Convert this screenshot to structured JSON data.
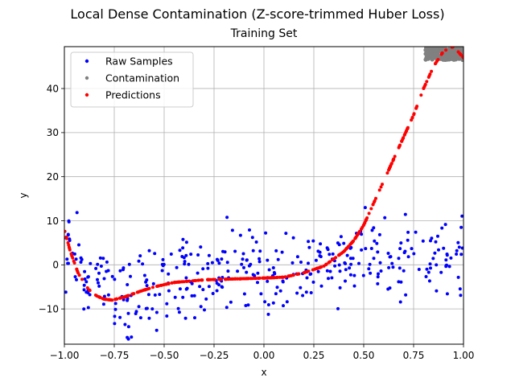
{
  "chart_data": {
    "type": "scatter",
    "suptitle": "Local Dense Contamination (Z-score-trimmed Huber Loss)",
    "title": "Training Set",
    "xlabel": "x",
    "ylabel": "y",
    "xlim": [
      -1.0,
      1.0
    ],
    "ylim": [
      -18,
      49.5
    ],
    "x_ticks": [
      -1.0,
      -0.75,
      -0.5,
      -0.25,
      0.0,
      0.25,
      0.5,
      0.75,
      1.0
    ],
    "x_tick_labels": [
      "−1.00",
      "−0.75",
      "−0.50",
      "−0.25",
      "0.00",
      "0.25",
      "0.50",
      "0.75",
      "1.00"
    ],
    "y_ticks": [
      -10,
      0,
      10,
      20,
      30,
      40
    ],
    "y_tick_labels": [
      "−10",
      "0",
      "10",
      "20",
      "30",
      "40"
    ],
    "grid": true,
    "legend_position": "upper-left",
    "series": [
      {
        "name": "Raw Samples",
        "color": "#0000ff",
        "marker": "dot",
        "trend_points": [
          [
            -1.0,
            5
          ],
          [
            -0.9,
            -1
          ],
          [
            -0.8,
            -6
          ],
          [
            -0.75,
            -8
          ],
          [
            -0.6,
            -6
          ],
          [
            -0.5,
            -4
          ],
          [
            -0.4,
            -3
          ],
          [
            -0.25,
            -2
          ],
          [
            0.0,
            -1
          ],
          [
            0.25,
            0
          ],
          [
            0.5,
            2
          ],
          [
            0.75,
            2
          ],
          [
            1.0,
            1
          ]
        ],
        "noise_sd": 4.5,
        "count": 380
      },
      {
        "name": "Contamination",
        "color": "#808080",
        "marker": "dot",
        "x_range": [
          0.81,
          1.0
        ],
        "y_range": [
          46.5,
          49.5
        ],
        "count": 220
      },
      {
        "name": "Predictions",
        "color": "#ff0000",
        "marker": "dot",
        "curve_points": [
          [
            -1.0,
            8
          ],
          [
            -0.97,
            3
          ],
          [
            -0.93,
            -2
          ],
          [
            -0.88,
            -5.5
          ],
          [
            -0.84,
            -7
          ],
          [
            -0.8,
            -7.8
          ],
          [
            -0.76,
            -8
          ],
          [
            -0.7,
            -7.3
          ],
          [
            -0.62,
            -6
          ],
          [
            -0.55,
            -5
          ],
          [
            -0.45,
            -4
          ],
          [
            -0.3,
            -3.4
          ],
          [
            -0.15,
            -3.2
          ],
          [
            0.0,
            -3
          ],
          [
            0.1,
            -2.8
          ],
          [
            0.2,
            -1.8
          ],
          [
            0.3,
            -0.3
          ],
          [
            0.4,
            3
          ],
          [
            0.45,
            5.5
          ],
          [
            0.5,
            9
          ],
          [
            0.55,
            14
          ],
          [
            0.6,
            19
          ],
          [
            0.65,
            24
          ],
          [
            0.7,
            29
          ],
          [
            0.75,
            34
          ],
          [
            0.8,
            40
          ],
          [
            0.85,
            45
          ],
          [
            0.9,
            48.5
          ],
          [
            0.95,
            49.5
          ],
          [
            1.0,
            47
          ]
        ],
        "count": 380
      }
    ]
  }
}
